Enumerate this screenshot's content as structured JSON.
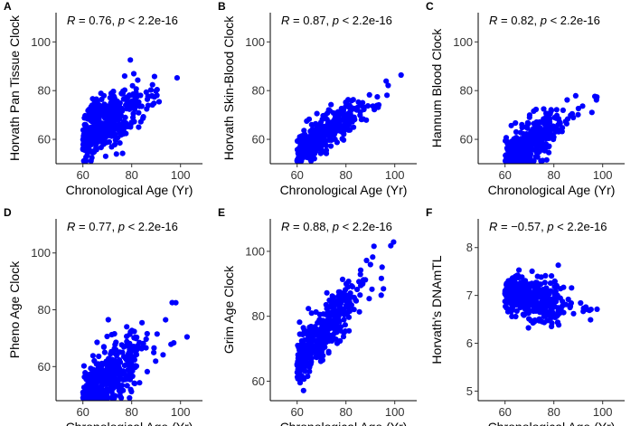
{
  "figure": {
    "point_color": "#0000ff"
  },
  "chart_data": [
    {
      "type": "scatter",
      "panel": "A",
      "ylabel": "Horvath Pan Tissue Clock",
      "xlabel": "Chronological Age (Yr)",
      "xlim": [
        49,
        109
      ],
      "ylim": [
        50,
        112
      ],
      "xticks": [
        "60",
        "80",
        "100"
      ],
      "yticks": [
        "60",
        "80",
        "100"
      ],
      "annotation": {
        "stat_name": "R",
        "stat_value": " = 0.76, ",
        "p_name": "p",
        "p_value": " < 2.2e-16"
      },
      "trend": {
        "intercept": 18,
        "slope": 0.7,
        "noise": 5.5,
        "n": 420,
        "seed": 11
      }
    },
    {
      "type": "scatter",
      "panel": "B",
      "ylabel": "Horvath Skin-Blood Clock",
      "xlabel": "Chronological Age (Yr)",
      "xlim": [
        49,
        109
      ],
      "ylim": [
        50,
        112
      ],
      "xticks": [
        "60",
        "80",
        "100"
      ],
      "yticks": [
        "60",
        "80",
        "100"
      ],
      "annotation": {
        "stat_name": "R",
        "stat_value": " = 0.87, ",
        "p_name": "p",
        "p_value": " < 2.2e-16"
      },
      "trend": {
        "intercept": 14,
        "slope": 0.68,
        "noise": 3.5,
        "n": 420,
        "seed": 23
      }
    },
    {
      "type": "scatter",
      "panel": "C",
      "ylabel": "Hannum Blood Clock",
      "xlabel": "Chronological Age (Yr)",
      "xlim": [
        49,
        109
      ],
      "ylim": [
        50,
        112
      ],
      "xticks": [
        "60",
        "80",
        "100"
      ],
      "yticks": [
        "60",
        "80",
        "100"
      ],
      "annotation": {
        "stat_name": "R",
        "stat_value": " = 0.82, ",
        "p_name": "p",
        "p_value": " < 2.2e-16"
      },
      "trend": {
        "intercept": 5,
        "slope": 0.75,
        "noise": 4.5,
        "n": 420,
        "seed": 37
      }
    },
    {
      "type": "scatter",
      "panel": "D",
      "ylabel": "Pheno Age Clock",
      "xlabel": "Chronological Age (Yr)",
      "xlim": [
        49,
        109
      ],
      "ylim": [
        48,
        112
      ],
      "xticks": [
        "60",
        "80",
        "100"
      ],
      "yticks": [
        "60",
        "80",
        "100"
      ],
      "annotation": {
        "stat_name": "R",
        "stat_value": " = 0.77, ",
        "p_name": "p",
        "p_value": " < 2.2e-16"
      },
      "trend": {
        "intercept": 5,
        "slope": 0.72,
        "noise": 5.5,
        "n": 420,
        "seed": 41
      }
    },
    {
      "type": "scatter",
      "panel": "E",
      "ylabel": "Grim Age Clock",
      "xlabel": "Chronological Age (Yr)",
      "xlim": [
        49,
        109
      ],
      "ylim": [
        54,
        110
      ],
      "xticks": [
        "60",
        "80",
        "100"
      ],
      "yticks": [
        "60",
        "80",
        "100"
      ],
      "annotation": {
        "stat_name": "R",
        "stat_value": " = 0.88, ",
        "p_name": "p",
        "p_value": " < 2.2e-16"
      },
      "trend": {
        "intercept": 16,
        "slope": 0.84,
        "noise": 4.0,
        "n": 420,
        "seed": 53
      }
    },
    {
      "type": "scatter",
      "panel": "F",
      "ylabel": "Horvath's DNAmTL",
      "xlabel": "Chronological Age (Yr)",
      "xlim": [
        49,
        109
      ],
      "ylim": [
        4.8,
        8.6
      ],
      "xticks": [
        "60",
        "80",
        "100"
      ],
      "yticks": [
        "5",
        "6",
        "7",
        "8"
      ],
      "annotation": {
        "stat_name": "R",
        "stat_value": " = −0.57, ",
        "p_name": "p",
        "p_value": " < 2.2e-16"
      },
      "trend": {
        "intercept": 7.75,
        "slope": -0.0115,
        "noise": 0.2,
        "n": 420,
        "seed": 67
      }
    }
  ]
}
